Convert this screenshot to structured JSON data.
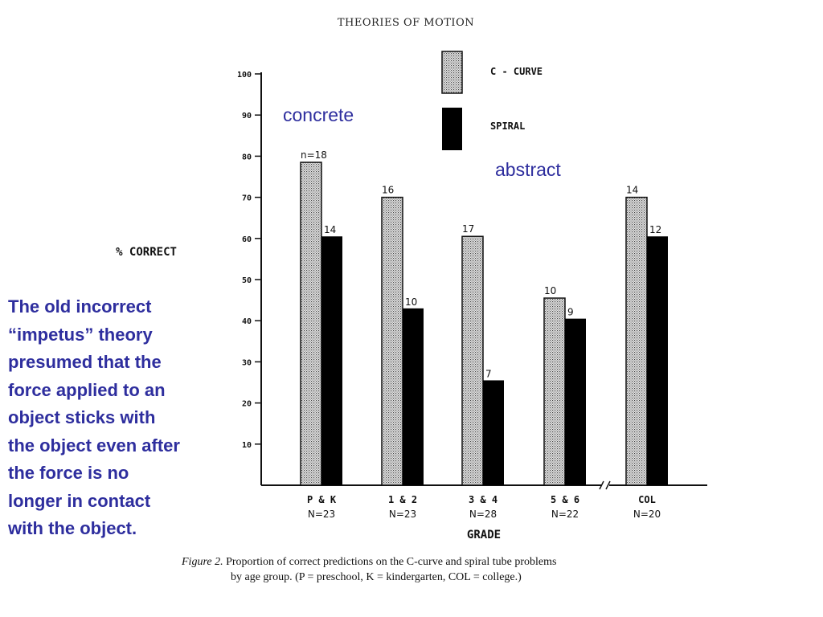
{
  "chart_data": {
    "type": "bar",
    "title": "THEORIES OF MOTION",
    "ylabel": "% CORRECT",
    "xlabel": "GRADE",
    "ylim": [
      0,
      100
    ],
    "yticks": [
      10,
      20,
      30,
      40,
      50,
      60,
      70,
      80,
      90,
      100
    ],
    "categories": [
      "P & K",
      "1 & 2",
      "3 & 4",
      "5 & 6",
      "COL"
    ],
    "category_sublabels": [
      "N=23",
      "N=23",
      "N=28",
      "N=22",
      "N=20"
    ],
    "series": [
      {
        "name": "C - CURVE",
        "pattern": "stippled",
        "values": [
          78.5,
          70,
          60.5,
          45.5,
          70
        ],
        "labels": [
          "n=18",
          "16",
          "17",
          "10",
          "14"
        ]
      },
      {
        "name": "SPIRAL",
        "pattern": "solid",
        "values": [
          60.5,
          43,
          25.5,
          40.5,
          60.5
        ],
        "labels": [
          "14",
          "10",
          "7",
          "9",
          "12"
        ]
      }
    ],
    "legend_position": "top-right",
    "grid": false,
    "axis_break_between": [
      "5 & 6",
      "COL"
    ],
    "annotations": {
      "concrete": "concrete",
      "abstract": "abstract"
    },
    "caption": {
      "lead": "Figure 2.",
      "line1": " Proportion of correct predictions on the C-curve and spiral tube problems",
      "line2": "by age group. (P = preschool, K = kindergarten, COL = college.)"
    },
    "colors": {
      "bar_fill_stipple": "#d9d9d9",
      "bar_fill_solid": "#000000",
      "annotation": "#2e2e9e"
    }
  },
  "side_note": {
    "lines": [
      "The old incorrect",
      "“impetus” theory",
      "presumed that the",
      "force applied to an",
      "object sticks with",
      "the object even after",
      "the force is no",
      "longer in contact",
      "with the object."
    ]
  }
}
